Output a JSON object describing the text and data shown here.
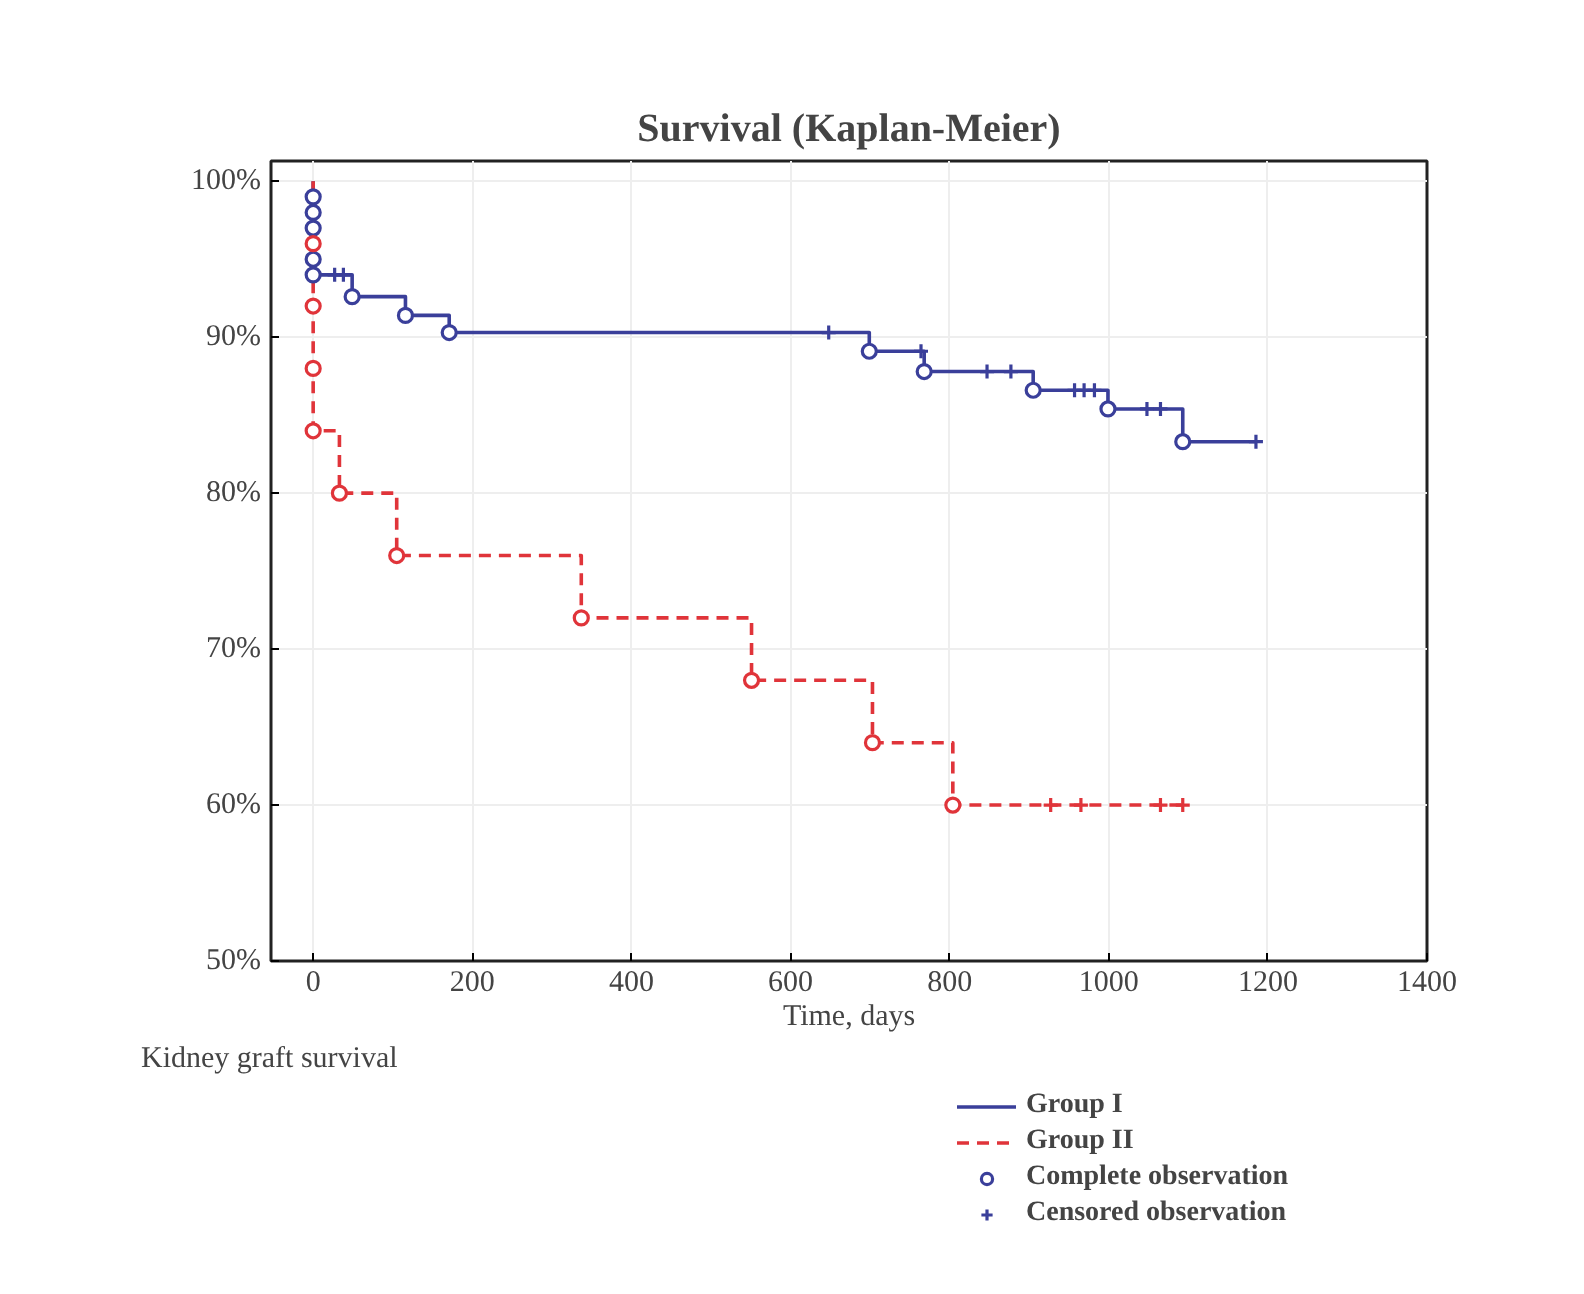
{
  "chart_data": {
    "type": "step",
    "title": "Survival (Kaplan-Meier)",
    "xlabel": "Time, days",
    "annotations": [
      "Kidney graft survival"
    ],
    "xlim": [
      -53,
      1400
    ],
    "xticks": [
      0,
      200,
      400,
      600,
      800,
      1000,
      1200,
      1400
    ],
    "ylim": [
      50,
      101.3
    ],
    "yticks": [
      {
        "value": 50,
        "label": "50%"
      },
      {
        "value": 60,
        "label": "60%"
      },
      {
        "value": 70,
        "label": "70%"
      },
      {
        "value": 80,
        "label": "80%"
      },
      {
        "value": 90,
        "label": "90%"
      },
      {
        "value": 100,
        "label": "100%"
      }
    ],
    "grid": true,
    "legend": "bottom right",
    "series": [
      {
        "name": "Group I",
        "type": "step",
        "color": "#3a3f9a",
        "line_style": "solid",
        "marker": "none",
        "x": [
          0,
          0,
          0,
          0,
          0,
          0,
          49,
          116,
          171,
          699,
          768,
          905,
          999,
          1093,
          1185
        ],
        "values": [
          100,
          99,
          98,
          97,
          95,
          94,
          92.6,
          91.4,
          90.3,
          89.1,
          87.8,
          86.6,
          85.4,
          83.3,
          83.3
        ]
      },
      {
        "name": "Group II",
        "type": "step",
        "color": "#e0343a",
        "line_style": "dashed",
        "marker": "none",
        "x": [
          0,
          0,
          0,
          0,
          0,
          33,
          105,
          337,
          551,
          703,
          804,
          1093
        ],
        "values": [
          100,
          96,
          92,
          88,
          84,
          80,
          76,
          72,
          68,
          64,
          60,
          60
        ]
      },
      {
        "name": "Complete observation",
        "type": "scatter",
        "marker": "circle",
        "color": "#3a3f9a",
        "x": [
          0,
          0,
          0,
          0,
          0,
          49,
          116,
          171,
          699,
          768,
          905,
          999,
          1093,
          0,
          0,
          0,
          0,
          33,
          105,
          337,
          551,
          703,
          804
        ],
        "values": [
          99,
          98,
          97,
          95,
          94,
          92.6,
          91.4,
          90.3,
          89.1,
          87.8,
          86.6,
          85.4,
          83.3,
          96,
          92,
          88,
          84,
          80,
          76,
          72,
          68,
          64,
          60
        ],
        "colors": [
          "#3a3f9a",
          "#3a3f9a",
          "#3a3f9a",
          "#3a3f9a",
          "#3a3f9a",
          "#3a3f9a",
          "#3a3f9a",
          "#3a3f9a",
          "#3a3f9a",
          "#3a3f9a",
          "#3a3f9a",
          "#3a3f9a",
          "#3a3f9a",
          "#e0343a",
          "#e0343a",
          "#e0343a",
          "#e0343a",
          "#e0343a",
          "#e0343a",
          "#e0343a",
          "#e0343a",
          "#e0343a",
          "#e0343a"
        ]
      },
      {
        "name": "Censored observation",
        "type": "scatter",
        "marker": "cross",
        "color": "#3a3f9a",
        "x": [
          27,
          38,
          648,
          764,
          847,
          877,
          957,
          969,
          982,
          1048,
          1065,
          1185,
          927,
          965,
          1065,
          1093
        ],
        "values": [
          94,
          94,
          90.3,
          89.1,
          87.8,
          87.8,
          86.6,
          86.6,
          86.6,
          85.4,
          85.4,
          83.3,
          60,
          60,
          60,
          60
        ],
        "colors": [
          "#3a3f9a",
          "#3a3f9a",
          "#3a3f9a",
          "#3a3f9a",
          "#3a3f9a",
          "#3a3f9a",
          "#3a3f9a",
          "#3a3f9a",
          "#3a3f9a",
          "#3a3f9a",
          "#3a3f9a",
          "#3a3f9a",
          "#e0343a",
          "#e0343a",
          "#e0343a",
          "#e0343a"
        ]
      }
    ]
  }
}
